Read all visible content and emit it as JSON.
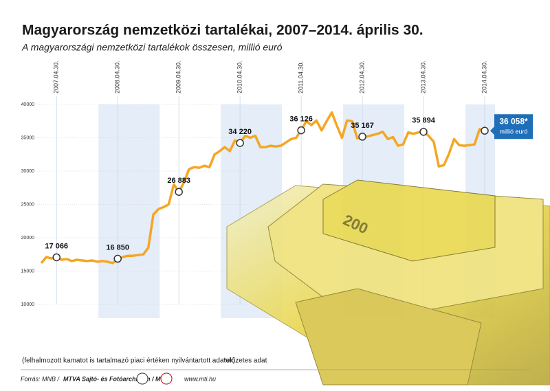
{
  "chart_data": {
    "type": "line",
    "title": "Magyarország nemzetközi tartalékai, 2007–2014. április 30.",
    "subtitle": "A magyarországi nemzetközi tartalékok összesen, millió euró",
    "categories": [
      null,
      null,
      null,
      "2007.04.30.",
      null,
      null,
      null,
      null,
      null,
      null,
      null,
      null,
      null,
      null,
      null,
      "2008.04.30.",
      null,
      null,
      null,
      null,
      null,
      null,
      null,
      null,
      null,
      null,
      null,
      "2009.04.30.",
      null,
      null,
      null,
      null,
      null,
      null,
      null,
      null,
      null,
      null,
      null,
      "2010.04.30.",
      null,
      null,
      null,
      null,
      null,
      null,
      null,
      null,
      null,
      null,
      null,
      "2011.04.30.",
      null,
      null,
      null,
      null,
      null,
      null,
      null,
      null,
      null,
      null,
      null,
      "2012.04.30.",
      null,
      null,
      null,
      null,
      null,
      null,
      null,
      null,
      null,
      null,
      null,
      "2013.04.30.",
      null,
      null,
      null,
      null,
      null,
      null,
      null,
      null,
      null,
      null,
      null,
      "2014.04.30."
    ],
    "series": [
      {
        "name": "nemzetközi tartalékok",
        "color": "#f5a623",
        "values": [
          16200,
          17100,
          16900,
          17066,
          16700,
          16800,
          16500,
          16700,
          16600,
          16500,
          16600,
          16400,
          16500,
          16400,
          16200,
          16850,
          17100,
          17300,
          17300,
          17400,
          17500,
          18500,
          23500,
          24300,
          24600,
          25000,
          28000,
          26883,
          28300,
          30300,
          30600,
          30500,
          30800,
          30600,
          32500,
          33000,
          33600,
          33000,
          34600,
          34220,
          35300,
          35000,
          35300,
          33600,
          33600,
          33800,
          33700,
          33800,
          34300,
          34800,
          35000,
          36126,
          37500,
          36900,
          37600,
          36100,
          37500,
          38800,
          36800,
          35000,
          37600,
          37500,
          34900,
          35167,
          35200,
          35400,
          35600,
          35900,
          34800,
          35100,
          33800,
          34000,
          35800,
          35600,
          35800,
          35894,
          35300,
          34400,
          30700,
          30900,
          32600,
          34800,
          33900,
          33800,
          33900,
          34000,
          36300,
          36058
        ],
        "value_labels": [
          null,
          null,
          null,
          "17 066",
          null,
          null,
          null,
          null,
          null,
          null,
          null,
          null,
          null,
          null,
          null,
          "16 850",
          null,
          null,
          null,
          null,
          null,
          null,
          null,
          null,
          null,
          null,
          null,
          "26 883",
          null,
          null,
          null,
          null,
          null,
          null,
          null,
          null,
          null,
          null,
          null,
          "34 220",
          null,
          null,
          null,
          null,
          null,
          null,
          null,
          null,
          null,
          null,
          null,
          "36 126",
          null,
          null,
          null,
          null,
          null,
          null,
          null,
          null,
          null,
          null,
          null,
          "35 167",
          null,
          null,
          null,
          null,
          null,
          null,
          null,
          null,
          null,
          null,
          null,
          "35 894",
          null,
          null,
          null,
          null,
          null,
          null,
          null,
          null,
          null,
          null,
          null,
          "36 058*"
        ]
      }
    ],
    "last_label_unit": "millió euró",
    "ylim": [
      10000,
      40000
    ],
    "yticks": [
      10000,
      15000,
      20000,
      25000,
      30000,
      35000,
      40000
    ],
    "note": "(felhalmozott kamatot is tartalmazó piaci értéken nyilvántartott adatok)",
    "footnote": "*előzetes adat",
    "source_prefix": "Forrás: MNB /",
    "source_agency": "MTVA Sajtó- és Fotóarchívum / MTI",
    "website": "www.mti.hu"
  }
}
